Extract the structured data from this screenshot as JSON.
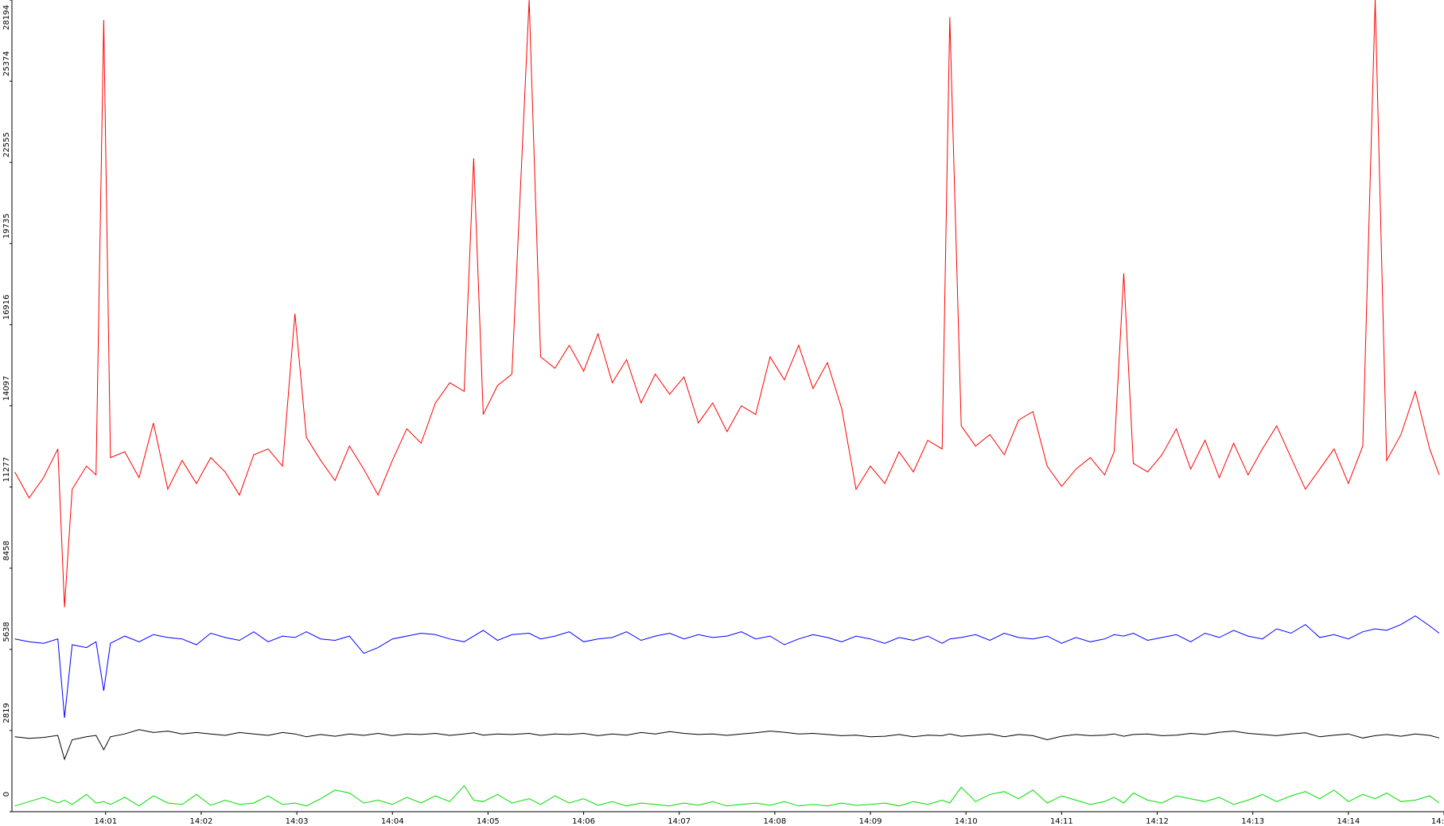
{
  "chart_data": {
    "type": "line",
    "x": [
      0.05,
      0.2,
      0.35,
      0.5,
      0.57,
      0.65,
      0.8,
      0.9,
      0.98,
      1.05,
      1.2,
      1.35,
      1.5,
      1.65,
      1.8,
      1.95,
      2.1,
      2.25,
      2.4,
      2.55,
      2.7,
      2.85,
      2.98,
      3.1,
      3.25,
      3.4,
      3.55,
      3.7,
      3.85,
      4.0,
      4.15,
      4.3,
      4.45,
      4.6,
      4.75,
      4.85,
      4.95,
      5.1,
      5.25,
      5.43,
      5.55,
      5.7,
      5.85,
      6.0,
      6.15,
      6.3,
      6.45,
      6.6,
      6.75,
      6.9,
      7.05,
      7.2,
      7.35,
      7.5,
      7.65,
      7.8,
      7.95,
      8.1,
      8.25,
      8.4,
      8.55,
      8.7,
      8.85,
      9.0,
      9.15,
      9.3,
      9.45,
      9.6,
      9.75,
      9.83,
      9.95,
      10.1,
      10.25,
      10.4,
      10.55,
      10.7,
      10.85,
      11.0,
      11.15,
      11.3,
      11.45,
      11.55,
      11.65,
      11.75,
      11.9,
      12.05,
      12.2,
      12.35,
      12.5,
      12.65,
      12.8,
      12.95,
      13.1,
      13.25,
      13.4,
      13.55,
      13.7,
      13.85,
      14.0,
      14.15,
      14.28,
      14.4,
      14.55,
      14.7,
      14.85,
      14.95
    ],
    "series": [
      {
        "color": "#ff0000",
        "values": [
          11800,
          10900,
          11600,
          12600,
          7100,
          11200,
          12000,
          11700,
          27500,
          12300,
          12500,
          11600,
          13500,
          11200,
          12200,
          11400,
          12300,
          11800,
          11000,
          12400,
          12600,
          12000,
          17300,
          13000,
          12200,
          11500,
          12700,
          11900,
          11000,
          12200,
          13300,
          12800,
          14200,
          14900,
          14600,
          22700,
          13800,
          14800,
          15200,
          28194,
          15800,
          15400,
          16200,
          15300,
          16600,
          14900,
          15700,
          14200,
          15200,
          14500,
          15100,
          13500,
          14200,
          13200,
          14100,
          13800,
          15800,
          15000,
          16200,
          14700,
          15600,
          14000,
          11200,
          12000,
          11400,
          12500,
          11800,
          12900,
          12600,
          27600,
          13400,
          12700,
          13100,
          12400,
          13600,
          13900,
          12000,
          11300,
          11900,
          12300,
          11700,
          12500,
          18700,
          12100,
          11800,
          12400,
          13300,
          11900,
          12900,
          11600,
          12800,
          11700,
          12600,
          13400,
          12300,
          11200,
          11900,
          12600,
          11400,
          12700,
          28194,
          12200,
          13100,
          14600,
          12600,
          11700
        ]
      },
      {
        "color": "#0000ff",
        "values": [
          6000,
          5900,
          5850,
          6000,
          3260,
          5800,
          5700,
          5900,
          4200,
          5850,
          6100,
          5900,
          6150,
          6050,
          6000,
          5800,
          6200,
          6050,
          5950,
          6250,
          5900,
          6100,
          6050,
          6250,
          6000,
          5950,
          6100,
          5500,
          5700,
          6000,
          6100,
          6200,
          6150,
          6000,
          5900,
          6100,
          6300,
          5950,
          6150,
          6200,
          6000,
          6100,
          6250,
          5900,
          6000,
          6050,
          6250,
          5950,
          6100,
          6200,
          6000,
          6150,
          6050,
          6100,
          6250,
          6000,
          6100,
          5800,
          6000,
          6150,
          6050,
          5900,
          6100,
          6000,
          5850,
          6050,
          5950,
          6100,
          5850,
          6000,
          6050,
          6150,
          5950,
          6200,
          6050,
          6000,
          6100,
          5850,
          6050,
          5900,
          6000,
          6150,
          6100,
          6200,
          5950,
          6050,
          6150,
          5900,
          6200,
          6050,
          6300,
          6100,
          6000,
          6350,
          6200,
          6500,
          6050,
          6150,
          6000,
          6250,
          6350,
          6300,
          6500,
          6800,
          6450,
          6200
        ]
      },
      {
        "color": "#000000",
        "values": [
          2600,
          2550,
          2580,
          2650,
          1820,
          2500,
          2600,
          2650,
          2150,
          2600,
          2700,
          2850,
          2750,
          2800,
          2700,
          2750,
          2700,
          2650,
          2750,
          2700,
          2650,
          2750,
          2700,
          2600,
          2680,
          2620,
          2700,
          2650,
          2720,
          2640,
          2700,
          2680,
          2720,
          2650,
          2700,
          2740,
          2660,
          2700,
          2680,
          2720,
          2650,
          2700,
          2680,
          2720,
          2640,
          2700,
          2660,
          2750,
          2700,
          2780,
          2720,
          2680,
          2700,
          2650,
          2700,
          2740,
          2800,
          2760,
          2700,
          2720,
          2680,
          2640,
          2660,
          2600,
          2620,
          2680,
          2600,
          2660,
          2640,
          2700,
          2620,
          2660,
          2700,
          2600,
          2680,
          2640,
          2500,
          2620,
          2680,
          2640,
          2660,
          2700,
          2620,
          2680,
          2700,
          2640,
          2660,
          2720,
          2680,
          2760,
          2800,
          2720,
          2680,
          2640,
          2700,
          2740,
          2600,
          2660,
          2700,
          2560,
          2640,
          2680,
          2620,
          2700,
          2650,
          2560
        ]
      },
      {
        "color": "#00dd00",
        "values": [
          200,
          350,
          500,
          300,
          400,
          250,
          600,
          300,
          350,
          250,
          500,
          200,
          550,
          300,
          250,
          600,
          220,
          400,
          250,
          300,
          550,
          250,
          300,
          200,
          450,
          750,
          650,
          300,
          400,
          250,
          500,
          300,
          550,
          350,
          900,
          400,
          350,
          600,
          300,
          450,
          250,
          550,
          300,
          450,
          220,
          350,
          200,
          300,
          250,
          200,
          300,
          220,
          350,
          200,
          250,
          300,
          220,
          350,
          200,
          250,
          200,
          300,
          220,
          250,
          300,
          200,
          350,
          250,
          400,
          300,
          850,
          350,
          600,
          700,
          450,
          750,
          300,
          550,
          400,
          250,
          350,
          500,
          300,
          650,
          400,
          300,
          550,
          450,
          350,
          500,
          250,
          400,
          600,
          350,
          550,
          700,
          450,
          750,
          350,
          600,
          450,
          650,
          350,
          400,
          550,
          300
        ]
      }
    ],
    "xlim": [
      0.02,
      15
    ],
    "xticks": [
      {
        "value": 1,
        "label": "14:01"
      },
      {
        "value": 2,
        "label": "14:02"
      },
      {
        "value": 3,
        "label": "14:03"
      },
      {
        "value": 4,
        "label": "14:04"
      },
      {
        "value": 5,
        "label": "14:05"
      },
      {
        "value": 6,
        "label": "14:06"
      },
      {
        "value": 7,
        "label": "14:07"
      },
      {
        "value": 8,
        "label": "14:08"
      },
      {
        "value": 9,
        "label": "14:09"
      },
      {
        "value": 10,
        "label": "14:10"
      },
      {
        "value": 11,
        "label": "14:11"
      },
      {
        "value": 12,
        "label": "14:12"
      },
      {
        "value": 13,
        "label": "14:13"
      },
      {
        "value": 14,
        "label": "14:14"
      },
      {
        "value": 15,
        "label": "14:"
      }
    ],
    "ylim": [
      0,
      28194
    ],
    "yticks": [
      0,
      2819,
      5638,
      8458,
      11277,
      14097,
      16916,
      19735,
      22555,
      25374,
      28194
    ]
  }
}
